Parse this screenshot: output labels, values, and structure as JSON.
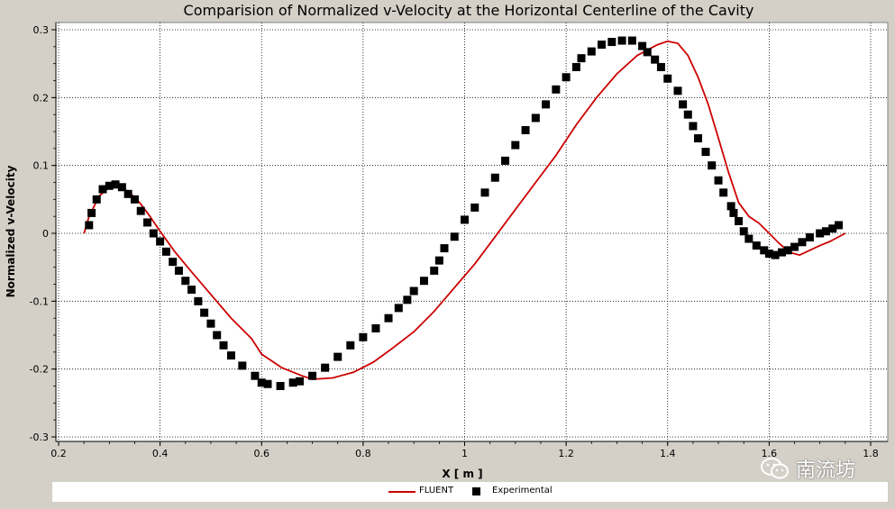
{
  "chart_data": {
    "type": "line",
    "title": "Comparision of Normalized v-Velocity at the Horizontal Centerline of the Cavity",
    "xlabel": "X [ m ]",
    "ylabel": "Normalized v-Velocity",
    "xlim": [
      0.2,
      1.8
    ],
    "ylim": [
      -0.3,
      0.3
    ],
    "xticks": [
      "0.2",
      "0.4",
      "0.6",
      "0.8",
      "1",
      "1.2",
      "1.4",
      "1.6",
      "1.8"
    ],
    "yticks": [
      "0.3",
      "0.2",
      "0.1",
      "0",
      "-0.1",
      "-0.2",
      "-0.3"
    ],
    "grid": true,
    "legend_position": "bottom",
    "series": [
      {
        "name": "FLUENT",
        "kind": "line",
        "color": "#cc0000",
        "x": [
          0.25,
          0.26,
          0.28,
          0.3,
          0.32,
          0.34,
          0.36,
          0.38,
          0.4,
          0.43,
          0.46,
          0.5,
          0.54,
          0.58,
          0.6,
          0.64,
          0.68,
          0.7,
          0.74,
          0.78,
          0.82,
          0.86,
          0.9,
          0.94,
          0.98,
          1.02,
          1.06,
          1.1,
          1.14,
          1.18,
          1.22,
          1.26,
          1.3,
          1.34,
          1.38,
          1.4,
          1.42,
          1.44,
          1.46,
          1.48,
          1.5,
          1.52,
          1.54,
          1.56,
          1.58,
          1.6,
          1.62,
          1.64,
          1.66,
          1.68,
          1.7,
          1.72,
          1.75
        ],
        "y": [
          0.0,
          0.025,
          0.055,
          0.068,
          0.07,
          0.06,
          0.045,
          0.025,
          0.003,
          -0.028,
          -0.055,
          -0.09,
          -0.125,
          -0.155,
          -0.178,
          -0.198,
          -0.21,
          -0.215,
          -0.213,
          -0.205,
          -0.19,
          -0.168,
          -0.145,
          -0.115,
          -0.08,
          -0.045,
          -0.005,
          0.035,
          0.075,
          0.115,
          0.16,
          0.2,
          0.235,
          0.262,
          0.278,
          0.283,
          0.28,
          0.262,
          0.23,
          0.19,
          0.14,
          0.09,
          0.045,
          0.025,
          0.015,
          0.0,
          -0.015,
          -0.028,
          -0.032,
          -0.025,
          -0.018,
          -0.012,
          0.0
        ]
      },
      {
        "name": "Experimental",
        "kind": "scatter",
        "color": "#000000",
        "x": [
          0.26,
          0.265,
          0.275,
          0.287,
          0.3,
          0.312,
          0.325,
          0.337,
          0.35,
          0.362,
          0.375,
          0.387,
          0.4,
          0.412,
          0.425,
          0.437,
          0.45,
          0.462,
          0.475,
          0.487,
          0.5,
          0.512,
          0.525,
          0.54,
          0.562,
          0.587,
          0.6,
          0.612,
          0.637,
          0.662,
          0.675,
          0.7,
          0.725,
          0.75,
          0.775,
          0.8,
          0.825,
          0.85,
          0.87,
          0.887,
          0.9,
          0.92,
          0.94,
          0.95,
          0.96,
          0.98,
          1.0,
          1.02,
          1.04,
          1.06,
          1.08,
          1.1,
          1.12,
          1.14,
          1.16,
          1.18,
          1.2,
          1.22,
          1.23,
          1.25,
          1.27,
          1.29,
          1.31,
          1.33,
          1.35,
          1.36,
          1.375,
          1.387,
          1.4,
          1.42,
          1.43,
          1.44,
          1.45,
          1.46,
          1.475,
          1.487,
          1.5,
          1.51,
          1.525,
          1.53,
          1.54,
          1.55,
          1.56,
          1.575,
          1.59,
          1.6,
          1.612,
          1.625,
          1.637,
          1.65,
          1.665,
          1.68,
          1.7,
          1.712,
          1.725,
          1.737
        ],
        "y": [
          0.012,
          0.03,
          0.05,
          0.065,
          0.07,
          0.072,
          0.068,
          0.058,
          0.05,
          0.033,
          0.016,
          0.0,
          -0.012,
          -0.027,
          -0.042,
          -0.055,
          -0.07,
          -0.083,
          -0.1,
          -0.117,
          -0.133,
          -0.15,
          -0.165,
          -0.18,
          -0.195,
          -0.21,
          -0.22,
          -0.222,
          -0.225,
          -0.22,
          -0.218,
          -0.21,
          -0.198,
          -0.182,
          -0.165,
          -0.153,
          -0.14,
          -0.125,
          -0.11,
          -0.098,
          -0.085,
          -0.07,
          -0.055,
          -0.04,
          -0.022,
          -0.005,
          0.02,
          0.038,
          0.06,
          0.082,
          0.107,
          0.13,
          0.152,
          0.17,
          0.19,
          0.212,
          0.23,
          0.245,
          0.258,
          0.268,
          0.278,
          0.282,
          0.284,
          0.284,
          0.276,
          0.267,
          0.256,
          0.245,
          0.228,
          0.21,
          0.19,
          0.175,
          0.158,
          0.14,
          0.12,
          0.1,
          0.078,
          0.06,
          0.04,
          0.03,
          0.018,
          0.003,
          -0.008,
          -0.018,
          -0.025,
          -0.03,
          -0.032,
          -0.028,
          -0.025,
          -0.02,
          -0.013,
          -0.006,
          0.0,
          0.003,
          0.007,
          0.012
        ]
      }
    ]
  },
  "watermark": {
    "text": "南流坊",
    "icon": "wechat-icon"
  },
  "colors": {
    "background": "#d4d0c8",
    "plot_background": "#ffffff",
    "grid": "#000000"
  }
}
